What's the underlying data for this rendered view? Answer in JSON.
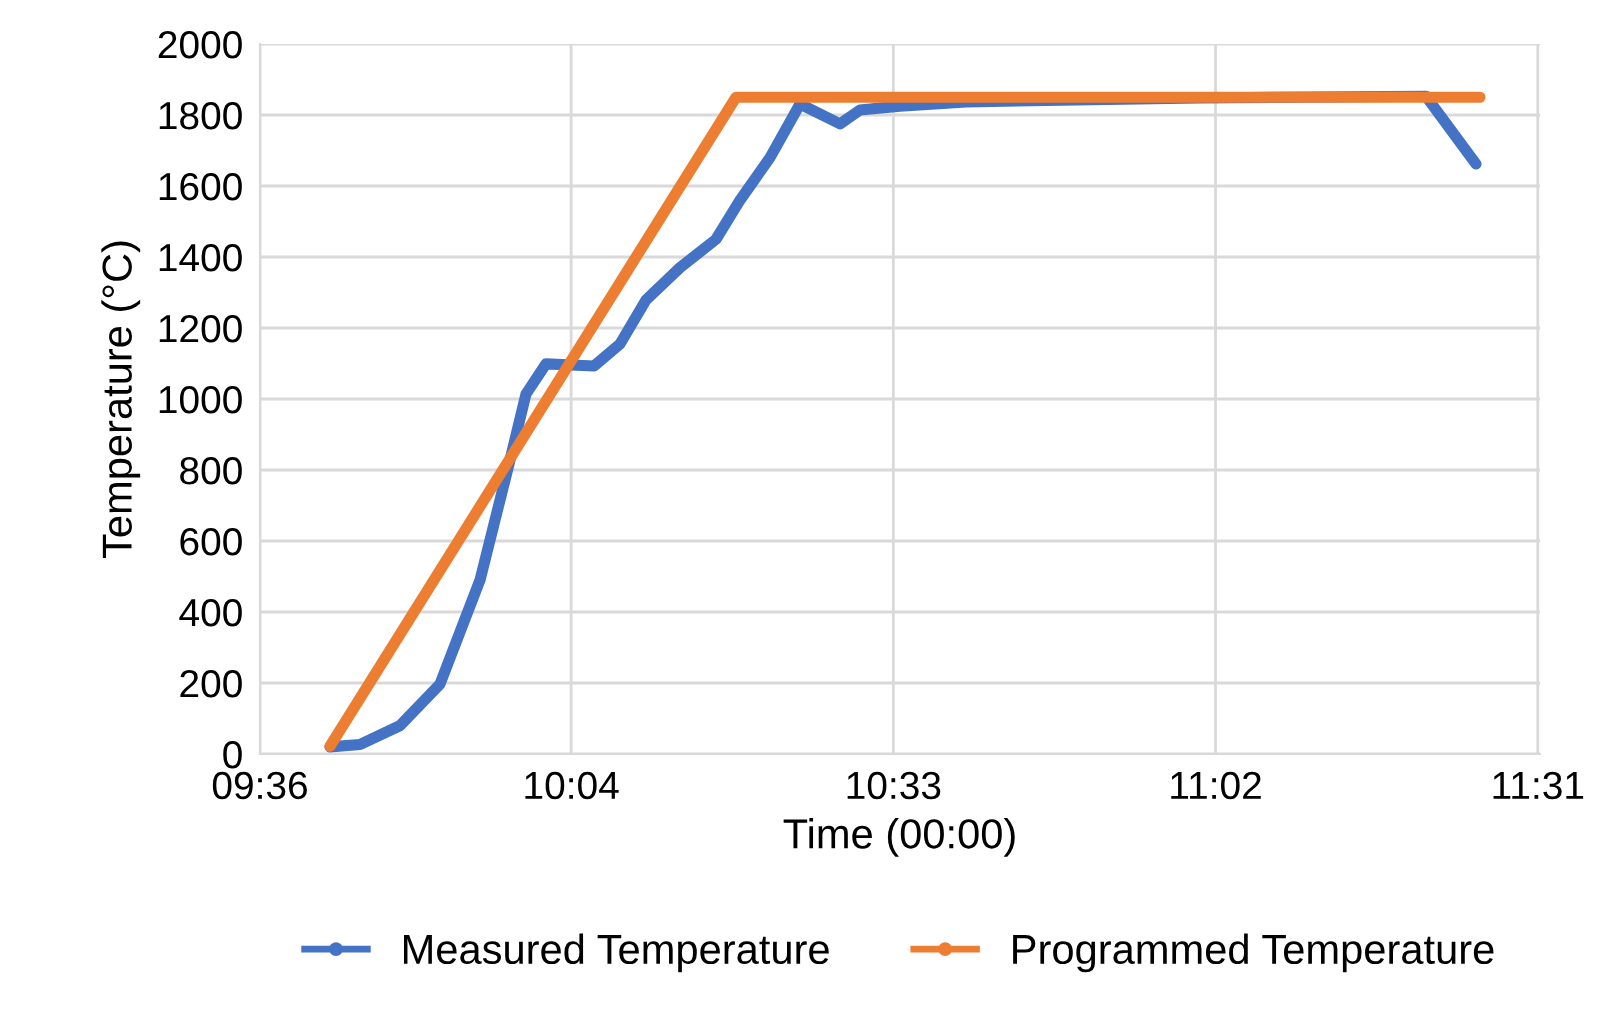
{
  "chart_data": {
    "type": "line",
    "xlabel": "Time (00:00)",
    "ylabel": "Temperature (°C)",
    "xlim": [
      9.6,
      11.52
    ],
    "xticks": [
      {
        "value": 9.6,
        "label": "09:36"
      },
      {
        "value": 10.0667,
        "label": "10:04"
      },
      {
        "value": 10.55,
        "label": "10:33"
      },
      {
        "value": 11.0333,
        "label": "11:02"
      },
      {
        "value": 11.5167,
        "label": "11:31"
      }
    ],
    "ylim": [
      0,
      2000
    ],
    "yticks": [
      0,
      200,
      400,
      600,
      800,
      1000,
      1200,
      1400,
      1600,
      1800,
      2000
    ],
    "grid": true,
    "legend": "bottom",
    "line_style": "solid",
    "series": [
      {
        "name": "Measured Temperature",
        "color": "#4472c4",
        "x": [
          9.705,
          9.75,
          9.81,
          9.87,
          9.93,
          9.975,
          9.999,
          10.029,
          10.101,
          10.14,
          10.179,
          10.23,
          10.284,
          10.32,
          10.365,
          10.41,
          10.47,
          10.5,
          10.56,
          10.659,
          11.01,
          11.349,
          11.424
        ],
        "values": [
          20,
          27,
          80,
          197,
          490,
          828,
          1014,
          1099,
          1093,
          1155,
          1279,
          1370,
          1450,
          1560,
          1680,
          1831,
          1775,
          1814,
          1825,
          1837,
          1848,
          1853,
          1662
        ]
      },
      {
        "name": "Programmed Temperature",
        "color": "#ed7d31",
        "x": [
          9.705,
          10.314,
          11.43
        ],
        "values": [
          22,
          1850,
          1850
        ]
      }
    ]
  }
}
